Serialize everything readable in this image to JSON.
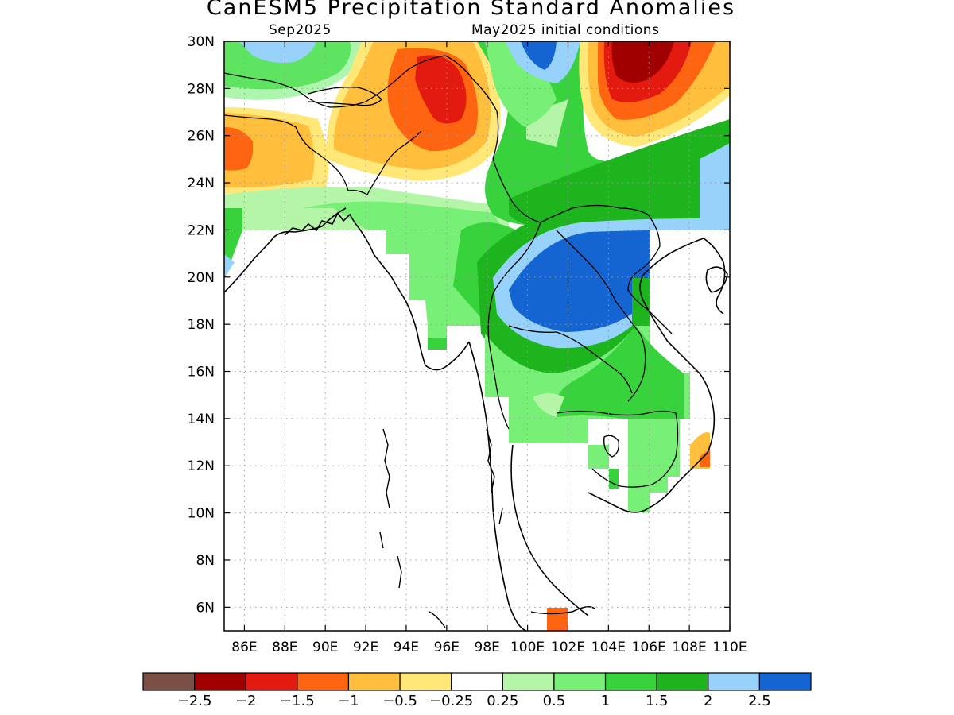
{
  "title": "CanESM5 Precipitation Standard Anomalies",
  "subtitle_left": "Sep2025",
  "subtitle_right": "May2025 initial conditions",
  "x_ticks": [
    "86E",
    "88E",
    "90E",
    "92E",
    "94E",
    "96E",
    "98E",
    "100E",
    "102E",
    "104E",
    "106E",
    "108E",
    "110E"
  ],
  "y_ticks": [
    "6N",
    "8N",
    "10N",
    "12N",
    "14N",
    "16N",
    "18N",
    "20N",
    "22N",
    "24N",
    "26N",
    "28N",
    "30N"
  ],
  "lon_range": [
    85,
    110
  ],
  "lat_range": [
    5,
    30
  ],
  "colorbar": {
    "colors": [
      "#7a5046",
      "#a00000",
      "#e21a0f",
      "#ff6410",
      "#ffbe3c",
      "#ffe878",
      "#ffffff",
      "#b4f5a8",
      "#78f078",
      "#37d23c",
      "#1eb41e",
      "#96d2fa",
      "#1464d2"
    ],
    "labels": [
      "−2.5",
      "−2",
      "−1.5",
      "−1",
      "−0.5",
      "−0.25",
      "0.25",
      "0.5",
      "1",
      "1.5",
      "2",
      "2.5"
    ]
  },
  "colors": {
    "frame": "#000000",
    "coast": "#000000",
    "grid": "#9a9a9a"
  }
}
